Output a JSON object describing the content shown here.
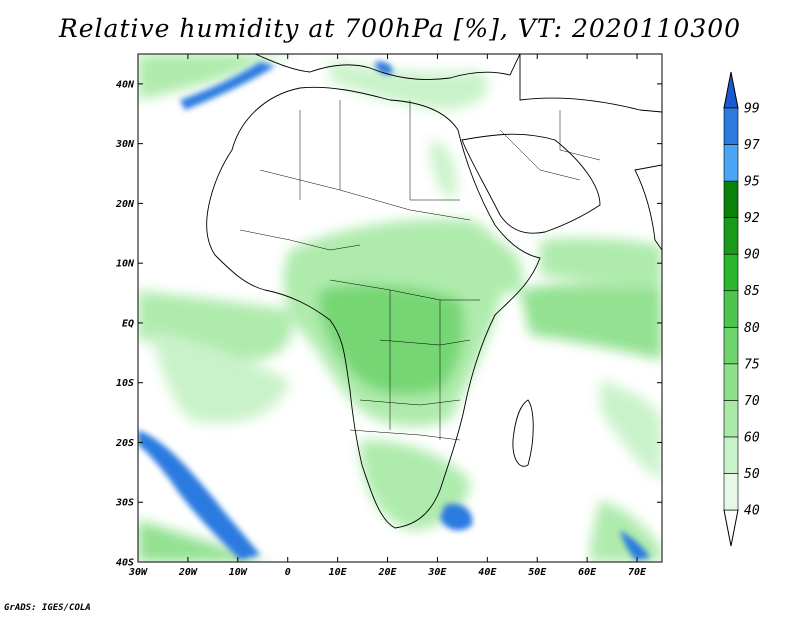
{
  "title": "Relative humidity at 700hPa [%], VT: 2020110300",
  "footer": "GrADS: IGES/COLA",
  "map": {
    "lon_range": [
      -30,
      75
    ],
    "lat_range": [
      -40,
      45
    ],
    "lon_ticks": [
      "30W",
      "20W",
      "10W",
      "0",
      "10E",
      "20E",
      "30E",
      "40E",
      "50E",
      "60E",
      "70E"
    ],
    "lat_ticks": [
      "40N",
      "30N",
      "20N",
      "10N",
      "EQ",
      "10S",
      "20S",
      "30S",
      "40S"
    ]
  },
  "colorbar": {
    "levels": [
      "40",
      "50",
      "60",
      "70",
      "75",
      "80",
      "85",
      "90",
      "92",
      "95",
      "97",
      "99"
    ],
    "colors": [
      "#ffffff",
      "#e6f9e6",
      "#c8f2c8",
      "#aaeaa8",
      "#8ee08c",
      "#6ed46c",
      "#4cc64c",
      "#2eb52e",
      "#199b19",
      "#0a820a",
      "#4aa6f4",
      "#2a7ae0",
      "#1a5ad0"
    ]
  }
}
